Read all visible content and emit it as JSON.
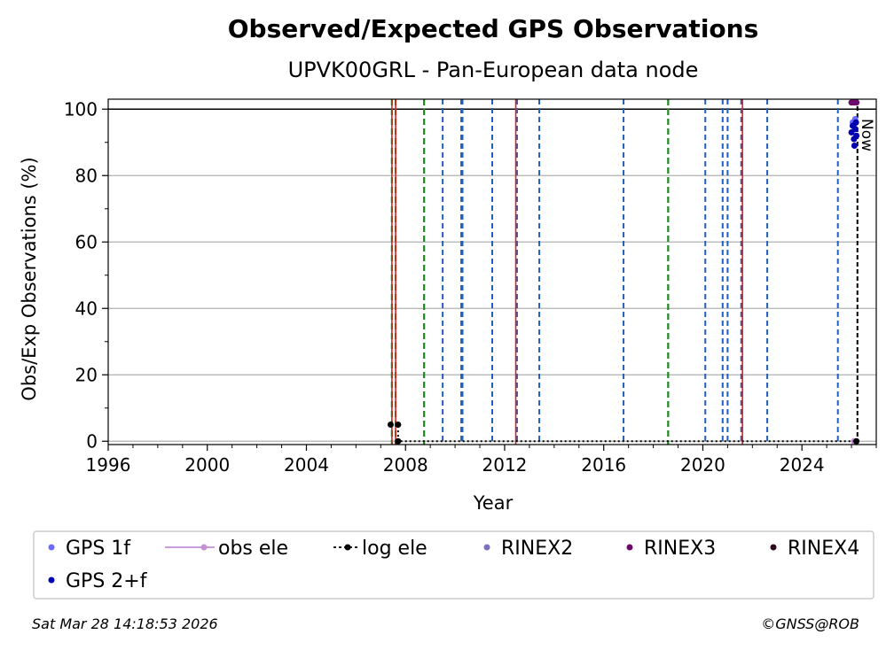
{
  "chart_data": {
    "type": "scatter",
    "title": "Observed/Expected GPS Observations",
    "subtitle": "UPVK00GRL - Pan-European data node",
    "xlabel": "Year",
    "ylabel": "Obs/Exp Observations (%)",
    "xlim": [
      1996,
      2027
    ],
    "ylim": [
      -1,
      103
    ],
    "x_ticks": [
      1996,
      2000,
      2004,
      2008,
      2012,
      2016,
      2020,
      2024
    ],
    "y_ticks": [
      0,
      20,
      40,
      60,
      80,
      100
    ],
    "grid": "horizontal",
    "reference_line": 100,
    "now_label": "Now",
    "now_x": 2026.24,
    "event_lines": {
      "blue_dashed": [
        2009.5,
        2010.25,
        2010.3,
        2011.5,
        2012.5,
        2013.4,
        2016.8,
        2020.1,
        2020.8,
        2021.0,
        2021.55,
        2022.6,
        2025.45
      ],
      "green_dashed": [
        2007.45,
        2007.6,
        2008.75,
        2018.6
      ],
      "red_solid": [
        2007.45,
        2007.6,
        2012.45,
        2021.6
      ],
      "colors": {
        "blue_dashed": "#1f5fbf",
        "green_dashed": "#1a8a1a",
        "red_solid": "#e02020"
      }
    },
    "series": [
      {
        "name": "GPS 1f",
        "color": "#6b6bff",
        "points": [
          [
            2026.05,
            96
          ],
          [
            2026.1,
            95
          ],
          [
            2026.15,
            97
          ]
        ]
      },
      {
        "name": "obs ele",
        "color": "#c58fd6",
        "points": [
          [
            2026.1,
            0
          ]
        ]
      },
      {
        "name": "log ele",
        "color": "#000000",
        "points": [
          [
            2007.4,
            5
          ],
          [
            2007.7,
            5
          ],
          [
            2007.7,
            0
          ],
          [
            2026.2,
            0
          ]
        ]
      },
      {
        "name": "RINEX2",
        "color": "#7f6fc0",
        "points": []
      },
      {
        "name": "RINEX3",
        "color": "#6a0a6a",
        "points": [
          [
            2026.0,
            102
          ],
          [
            2026.1,
            102
          ],
          [
            2026.2,
            102
          ]
        ]
      },
      {
        "name": "RINEX4",
        "color": "#2a0a1a",
        "points": []
      },
      {
        "name": "GPS 2+f",
        "color": "#0000b0",
        "points": [
          [
            2026.0,
            93
          ],
          [
            2026.05,
            95
          ],
          [
            2026.1,
            91
          ],
          [
            2026.12,
            89
          ],
          [
            2026.15,
            94
          ],
          [
            2026.18,
            96
          ],
          [
            2026.2,
            92
          ]
        ]
      }
    ]
  },
  "footer": {
    "timestamp": "Sat Mar 28 14:18:53 2026",
    "credit": "©GNSS@ROB"
  }
}
